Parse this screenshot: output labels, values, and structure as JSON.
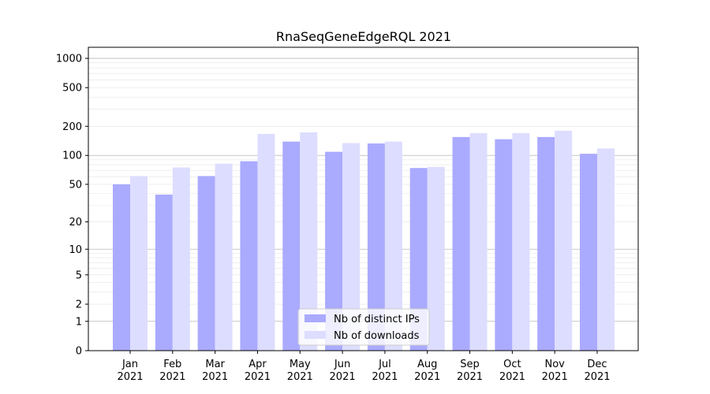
{
  "chart_data": {
    "type": "bar",
    "title": "RnaSeqGeneEdgeRQL 2021",
    "xlabel": "",
    "ylabel": "",
    "y_scale": "symlog",
    "ylim": [
      0,
      1300
    ],
    "y_ticks": [
      0,
      1,
      2,
      5,
      10,
      20,
      50,
      100,
      200,
      500,
      1000
    ],
    "categories": [
      "Jan\n2021",
      "Feb\n2021",
      "Mar\n2021",
      "Apr\n2021",
      "May\n2021",
      "Jun\n2021",
      "Jul\n2021",
      "Aug\n2021",
      "Sep\n2021",
      "Oct\n2021",
      "Nov\n2021",
      "Dec\n2021"
    ],
    "series": [
      {
        "name": "Nb of distinct IPs",
        "color": "#aaaaff",
        "values": [
          50,
          39,
          61,
          87,
          139,
          109,
          133,
          74,
          155,
          147,
          155,
          104
        ]
      },
      {
        "name": "Nb of downloads",
        "color": "#ddddff",
        "values": [
          61,
          75,
          82,
          167,
          173,
          134,
          139,
          76,
          170,
          170,
          180,
          118
        ]
      }
    ],
    "grid": true,
    "legend_position": "bottom-center"
  }
}
